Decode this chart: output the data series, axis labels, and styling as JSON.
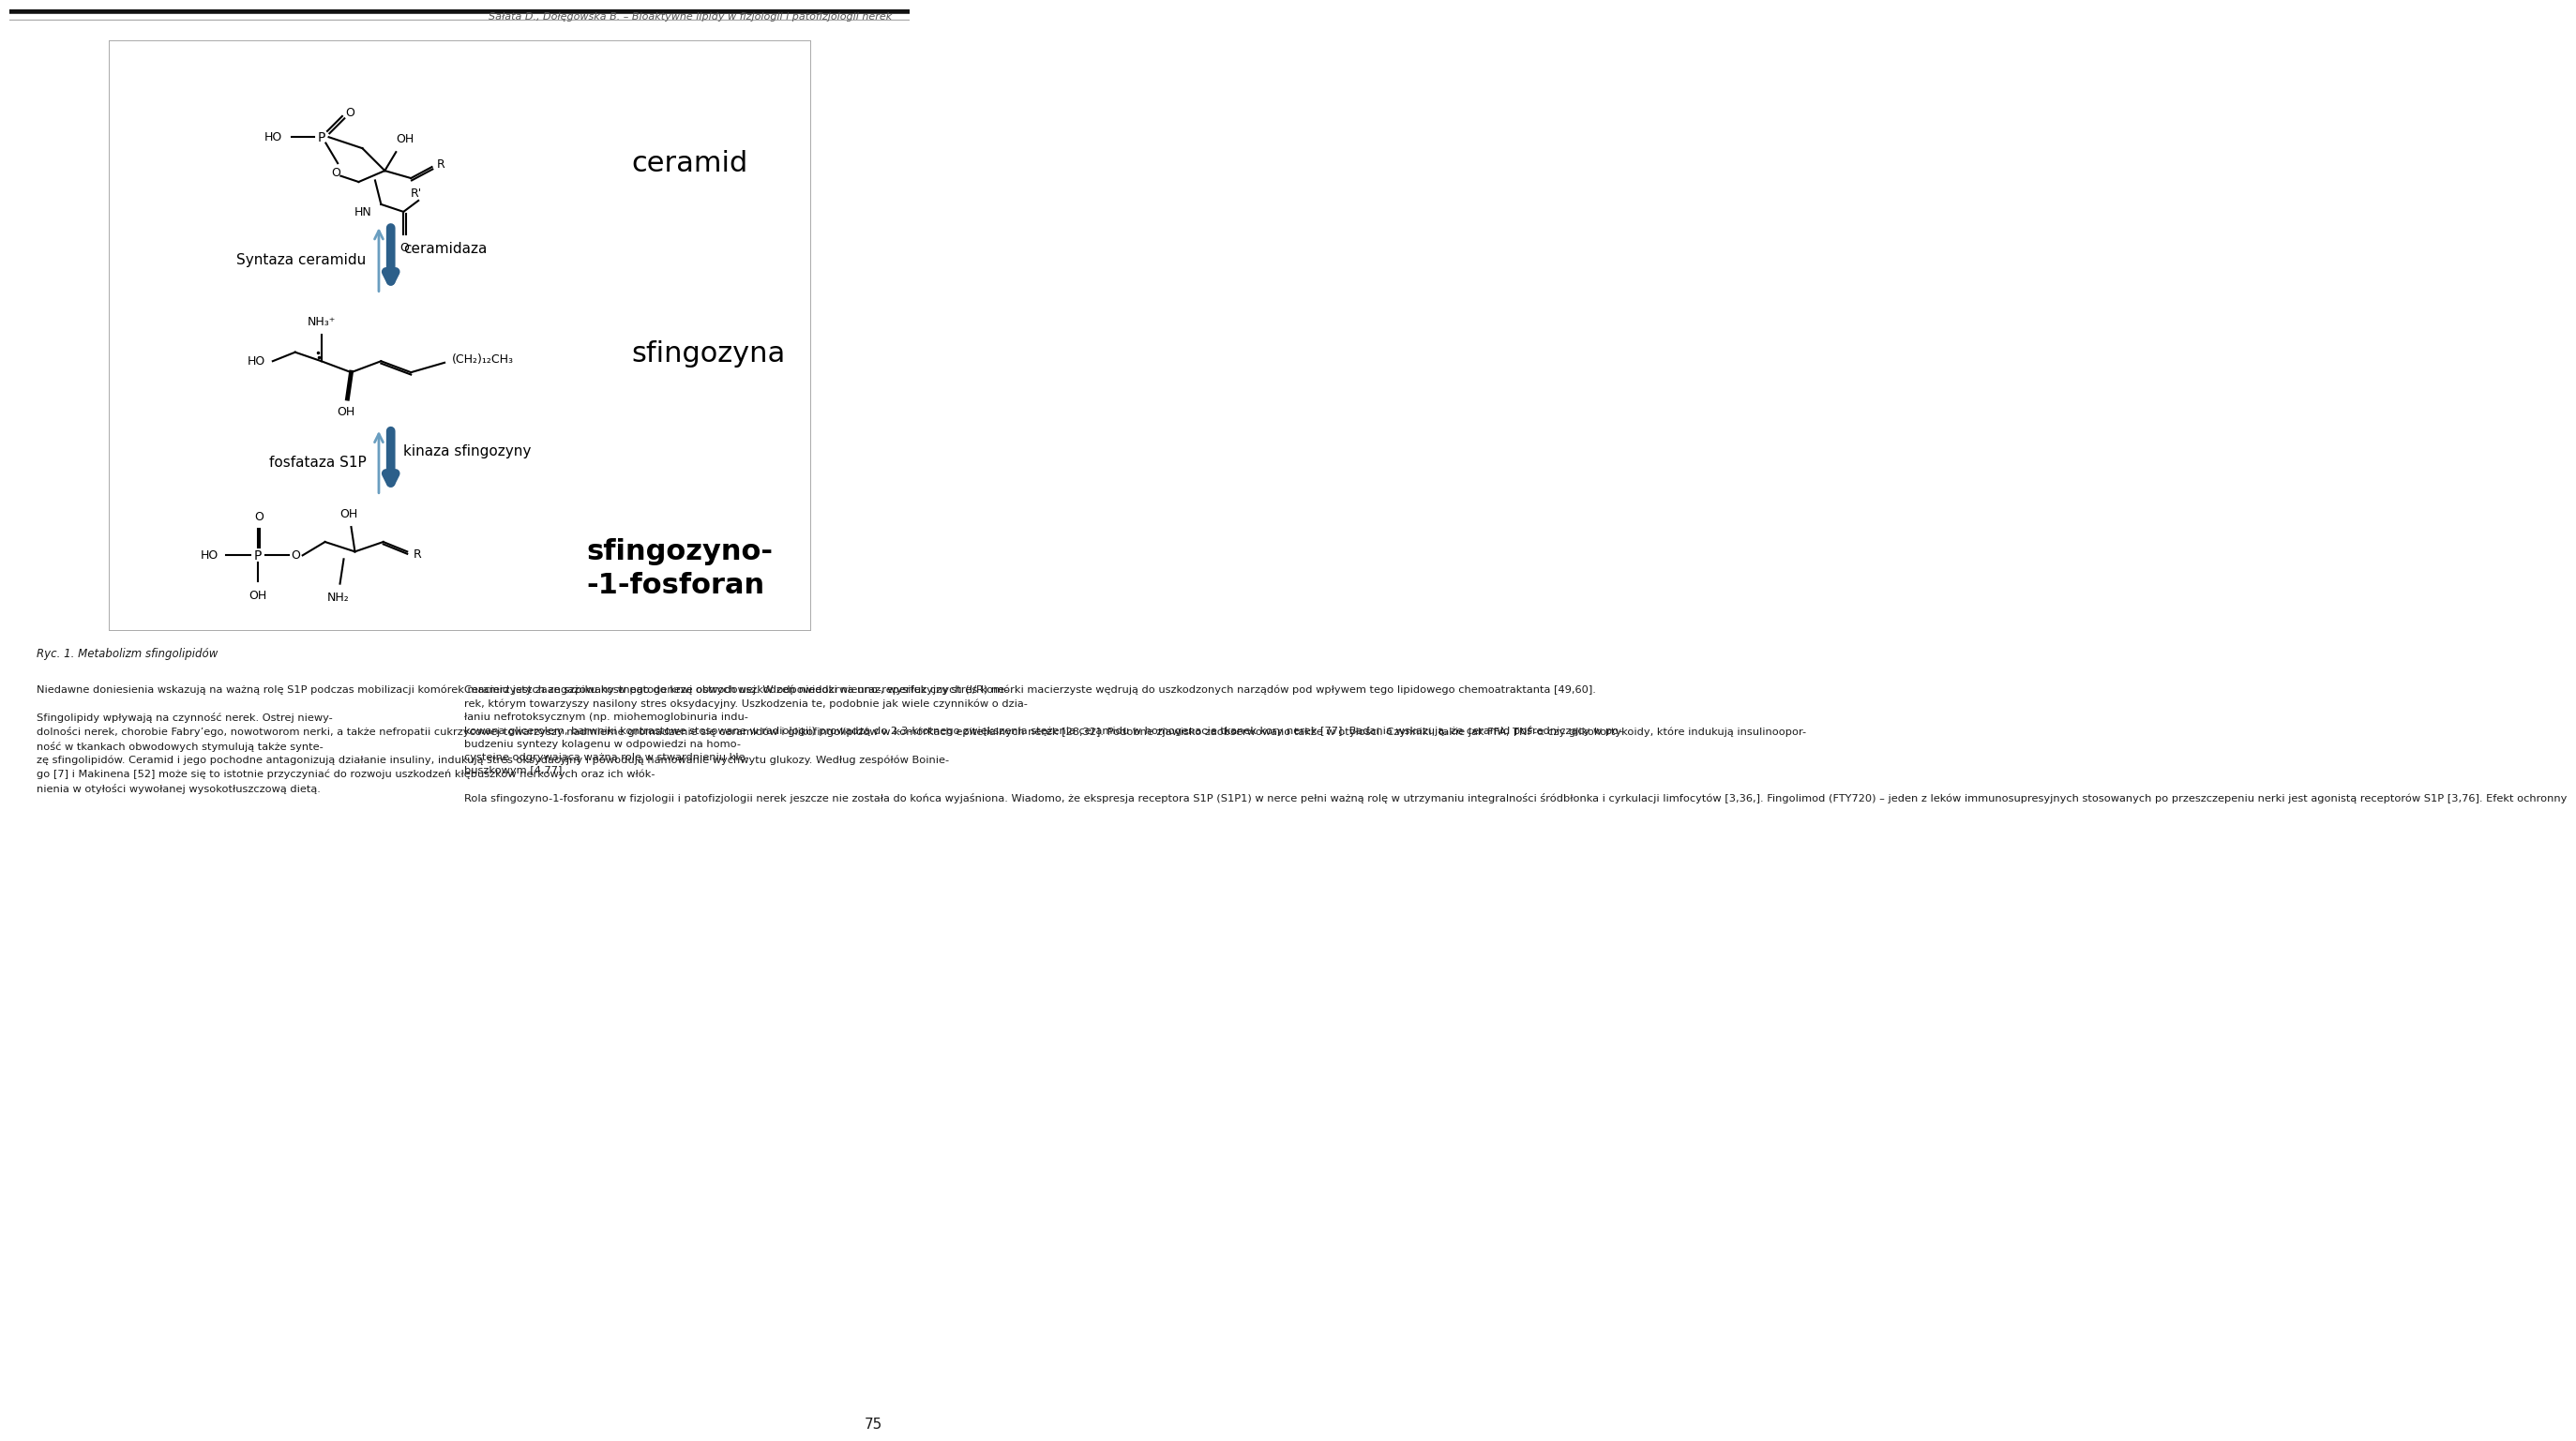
{
  "header_text": "Sałata D., Dołęgowska B. – Bioaktywne lipidy w fizjologii i patofizjologii nerek",
  "header_color": "#555555",
  "header_fontsize": 8.0,
  "page_number": "75",
  "figure_caption": "Ryc. 1. Metabolizm sfingolipidów",
  "caption_fontsize": 8.5,
  "label_ceramid": "ceramid",
  "label_ceramidaza": "ceramidaza",
  "label_syntaza": "Syntaza ceramidu",
  "label_sfingozyna": "sfingozyna",
  "label_fosfataza": "fosfataza S1P",
  "label_kinaza": "kinaza sfingozyny",
  "label_sfingozyno1": "sfingozyno-",
  "label_sfingozyno2": "-1-fosforan",
  "arrow_color_up": "#6a9ec0",
  "arrow_color_down": "#2c5f8a",
  "text_color": "#1a1a1a",
  "body_left_col": "Niedawne doniesienia wskazują na ważną rolę S1P podczas mobilizacji komórek macierzystych ze szpiku kostnego do krwi obwodowej. W odpowiedzi na uraz, wysiłek czy stres komórki macierzyste wędrują do uszkodzonych narządów pod wpływem tego lipidowego chemoatraktanta [49,60].\n\nSfingolipidy wpływają na czynność nerek. Ostrej niewy-\ndolności nerek, chorobie Fabry’ego, nowotworom nerki, a także nefropatii cukrzycowej towarzyszy nadmierne gromadzenie się ceramidów i glikofingolipidów w komórkach epitelialnych nerek [28,32]. Podobne zjawisko zaobserwowano także w otyłości. Czynniki, takie jak FFA, TNF-α czy glikokortykoidy, które indukują insulinoopor-\nność w tkankach obwodowych stymulują także synte-\nzę sfingolipidów. Ceramid i jego pochodne antagonizują działanie insuliny, indukują stres oksydacyjny i powodują hamowanie wychwytu glukozy. Według zespółów Boinie-\ngo [7] i Makinena [52] może się to istotnie przyczyniać do rozwoju uszkodzeń kłębuszków nerkowych oraz ich włók-\nnienia w otyłości wywołanej wysokotłuszczową dietą.",
  "body_right_col": "Ceramid jest zaangażowany w patogenezę ostrych uszkodzeń niedokrwienno-reperfuzyjnych (I/R) ne-\nrek, którym towarzyszy nasilony stres oksydacyjny. Uszkodzenia te, podobnie jak wiele czynników o dzia-\nłaniu nefrotoksycznym (np. miohemoglobinuria indu-\nkowana glicerolem, barwniki kontrastowe stosowane w radiologii) prowadzą do 2-3-krotnego zwiększenia stężenia ceramidu w homogenacie tkanek kory nerek [77]. Badania wskazują, że ceramid pośredniczący w po-\nbudzeniu syntezy kolagenu w odpowiedzi na homo-\ncysteinę odgrywającą ważną rolę w stwardnieniu kłę-\nbuszkowym [4,77].\n\nRola sfingozyno-1-fosforanu w fizjologii i patofizjologii nerek jeszcze nie została do końca wyjaśniona. Wiadomo, że ekspresja receptora S1P (S1P1) w nerce pełni ważną rolę w utrzymaniu integralności śródbłonka i cyrkulacji limfocytów [3,36,]. Fingolimod (FTY720) – jeden z leków immunosupresyjnych stosowanych po przeszczepeniu nerki jest agonistą receptorów S1P [3,76]. Efekt ochronny"
}
